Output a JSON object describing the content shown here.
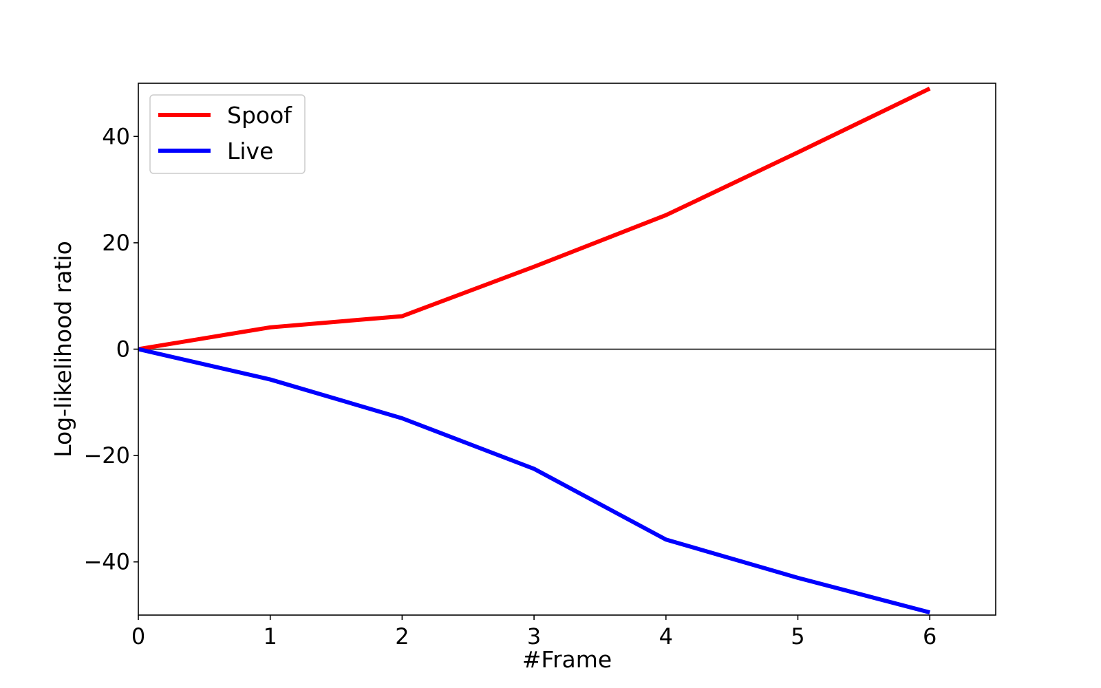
{
  "chart_data": {
    "type": "line",
    "title": "",
    "xlabel": "#Frame",
    "ylabel": "Log-likelihood ratio",
    "xlim": [
      0,
      6.5
    ],
    "ylim": [
      -50,
      50
    ],
    "xticks": [
      0,
      1,
      2,
      3,
      4,
      5,
      6
    ],
    "yticks": [
      -40,
      -20,
      0,
      20,
      40
    ],
    "ytick_labels": [
      "−40",
      "−20",
      "0",
      "20",
      "40"
    ],
    "grid": false,
    "legend_position": "top-left",
    "zero_line": true,
    "x": [
      0,
      1,
      2,
      3,
      4,
      5,
      6
    ],
    "series": [
      {
        "name": "Spoof",
        "color": "#ff0000",
        "values": [
          0,
          4.1,
          6.2,
          15.5,
          25.2,
          37.0,
          49.0
        ]
      },
      {
        "name": "Live",
        "color": "#0000ff",
        "values": [
          0,
          -5.7,
          -13.0,
          -22.5,
          -35.8,
          -43.0,
          -49.5
        ]
      }
    ]
  }
}
